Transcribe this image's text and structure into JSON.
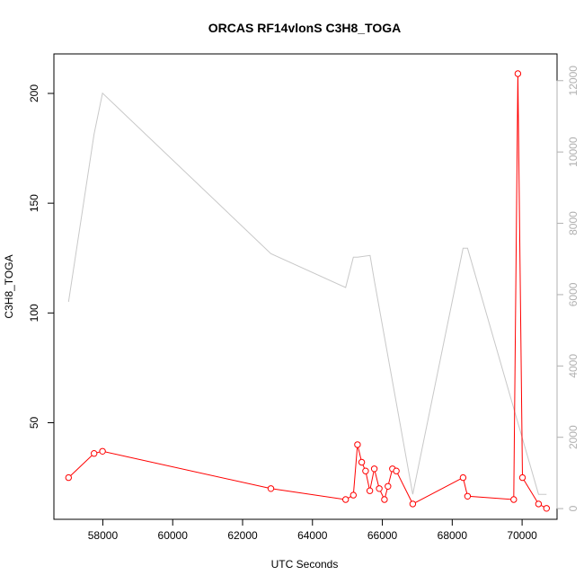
{
  "chart_data": {
    "type": "line",
    "title": "ORCAS RF14vlonS C3H8_TOGA",
    "xlabel": "UTC Seconds",
    "ylabel": "C3H8_TOGA",
    "xlim": [
      56600,
      71000
    ],
    "ylim": [
      6,
      218
    ],
    "y2lim": [
      -300,
      12750
    ],
    "x_ticks": [
      58000,
      60000,
      62000,
      64000,
      66000,
      68000,
      70000
    ],
    "y_ticks": [
      50,
      100,
      150,
      200
    ],
    "y2_ticks": [
      0,
      2000,
      4000,
      6000,
      8000,
      10000,
      12000
    ],
    "series": [
      {
        "axis": "left",
        "color": "#ff0000",
        "marker": "open-circle",
        "x": [
          57020,
          57750,
          57990,
          62810,
          64950,
          65170,
          65290,
          65410,
          65520,
          65640,
          65770,
          65910,
          66060,
          66160,
          66290,
          66400,
          66870,
          68310,
          68440,
          69760,
          69880,
          70010,
          70470,
          70700
        ],
        "y": [
          25,
          36,
          37,
          20,
          15,
          17,
          40,
          32,
          28,
          19,
          29,
          20,
          15,
          21,
          29,
          28,
          13,
          25,
          16.5,
          15,
          209,
          25,
          13,
          11
        ]
      },
      {
        "axis": "right",
        "color": "#c8c8c8",
        "marker": "none",
        "x": [
          57020,
          57750,
          57990,
          62810,
          64950,
          65170,
          65290,
          65650,
          65770,
          66870,
          68310,
          68440,
          70470,
          70700
        ],
        "y": [
          5800,
          10500,
          11650,
          7150,
          6200,
          7050,
          7050,
          7100,
          6400,
          400,
          7300,
          7300,
          400,
          400
        ]
      }
    ]
  }
}
